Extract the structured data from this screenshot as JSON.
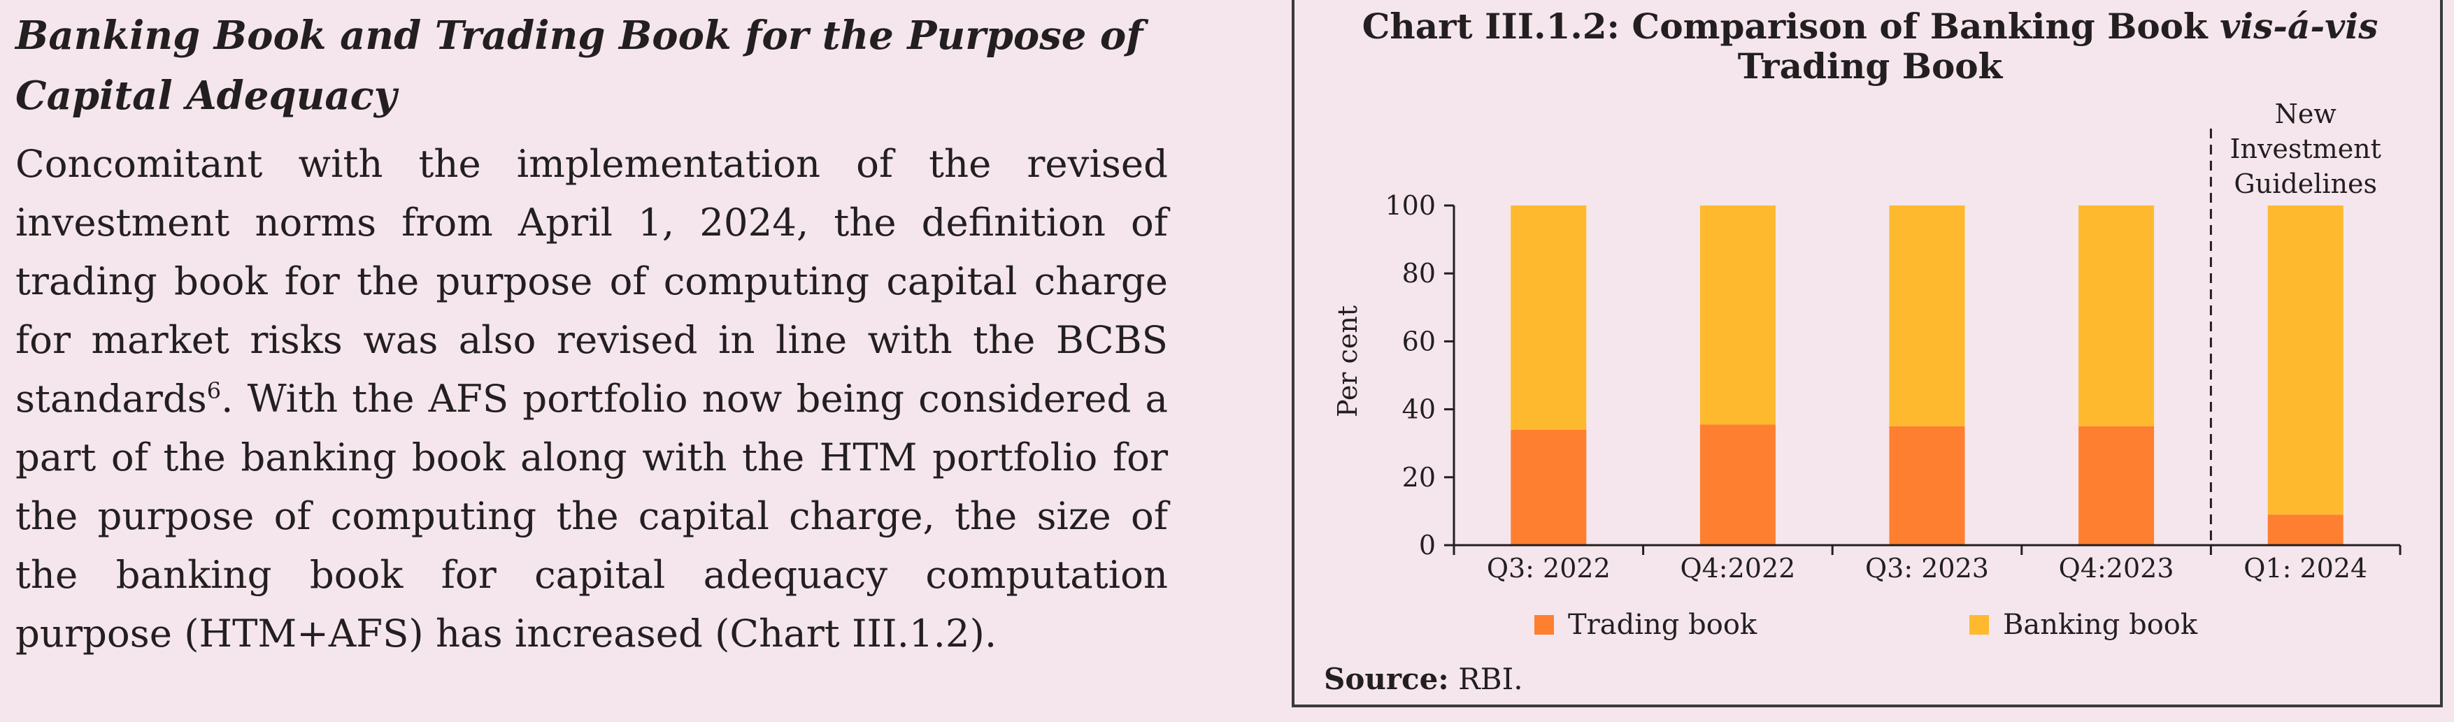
{
  "text_block": {
    "heading": "Banking Book and Trading Book for the Purpose of Capital Adequacy",
    "para_part1": "Concomitant with the implementation of the revised investment norms from April 1, 2024, the definition of trading book for the purpose of computing capital charge for market risks was also revised in line with the BCBS standards",
    "footnote_ref": "6",
    "para_part2": ". With the AFS portfolio now being considered a part of the banking book along with the HTM portfolio for the purpose of computing the capital charge, the size of the banking book for capital adequacy computation purpose (HTM+AFS) has increased (Chart III.1.2)."
  },
  "chart_box": {
    "title_line1_plain": "Chart III.1.2: Comparison of Banking Book ",
    "title_line1_italic": "vis-á-vis",
    "title_line2": "Trading Book",
    "source_label": "Source:",
    "source_text": " RBI."
  },
  "chart_data": {
    "type": "bar",
    "stacked": true,
    "categories": [
      "Q3: 2022",
      "Q4:2022",
      "Q3: 2023",
      "Q4:2023",
      "Q1: 2024"
    ],
    "series": [
      {
        "name": "Trading book",
        "values": [
          34,
          35.5,
          35,
          35,
          9
        ],
        "color": "#fe7f30"
      },
      {
        "name": "Banking book",
        "values": [
          66,
          64.5,
          65,
          65,
          91
        ],
        "color": "#feb92f"
      }
    ],
    "ylabel": "Per cent",
    "ylim": [
      0,
      100
    ],
    "yticks": [
      0,
      20,
      40,
      60,
      80,
      100
    ],
    "grid": false,
    "legend_position": "bottom",
    "annotation": {
      "lines": [
        "New",
        "Investment",
        "Guidelines"
      ],
      "style": "dashed vertical line between Q4:2023 and Q1: 2024"
    }
  }
}
